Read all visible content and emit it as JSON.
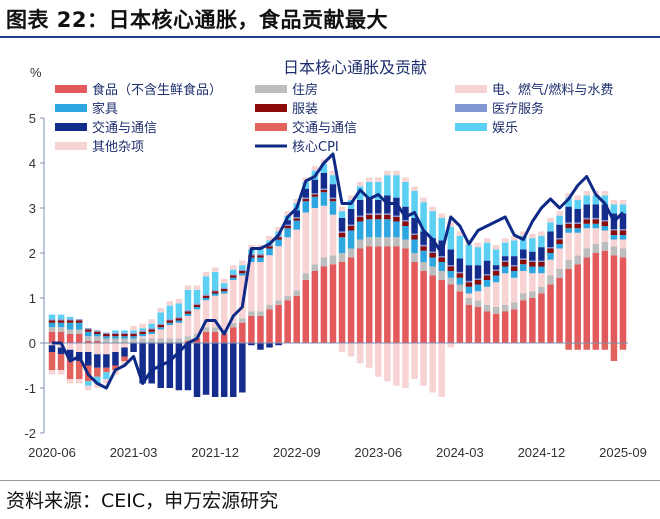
{
  "header": {
    "title": "图表 22：日本核心通胀，食品贡献最大"
  },
  "footer": {
    "source": "资料来源：CEIC，申万宏源研究"
  },
  "chart_data": {
    "type": "bar",
    "stacked": true,
    "title": "日本核心通胀及贡献",
    "ylabel": "%",
    "ylim": [
      -2,
      5
    ],
    "yticks": [
      "5",
      "4",
      "3",
      "2",
      "1",
      "0",
      "-1",
      "-2"
    ],
    "xticks": [
      "2020-06",
      "2021-03",
      "2021-12",
      "2022-09",
      "2023-06",
      "2024-03",
      "2024-12",
      "2025-09"
    ],
    "x_start": "2020-06",
    "x_end": "2025-09",
    "grid": false,
    "legend_position": "top",
    "series": [
      {
        "name": "食品（不含生鲜食品）",
        "color": "#e35a5c",
        "values": [
          0.25,
          0.25,
          0.2,
          0.2,
          0.05,
          0.05,
          0,
          0,
          0,
          0,
          0,
          0,
          0,
          0,
          0,
          0.05,
          0.1,
          0.25,
          0.25,
          0.2,
          0.35,
          0.45,
          0.6,
          0.6,
          0.75,
          0.85,
          0.95,
          1.05,
          1.4,
          1.6,
          1.7,
          1.75,
          1.8,
          1.9,
          2.1,
          2.15,
          2.15,
          2.15,
          2.15,
          2.1,
          1.8,
          1.6,
          1.5,
          1.4,
          1.3,
          1.15,
          0.85,
          0.8,
          0.7,
          0.65,
          0.7,
          0.75,
          0.95,
          1.0,
          1.1,
          1.3,
          1.45,
          1.65,
          1.75,
          1.9,
          2.0,
          2.05,
          1.95,
          1.9
        ]
      },
      {
        "name": "住房",
        "color": "#bdbdbd",
        "values": [
          0.1,
          0.1,
          0.1,
          0.1,
          0.1,
          0.1,
          0.1,
          0.1,
          0.1,
          0.1,
          0.1,
          0.1,
          0.1,
          0.1,
          0.1,
          0.1,
          0.1,
          0.1,
          0.1,
          0.1,
          0.1,
          0.1,
          0.1,
          0.1,
          0.1,
          0.1,
          0.1,
          0.12,
          0.15,
          0.15,
          0.2,
          0.2,
          0.2,
          0.2,
          0.2,
          0.2,
          0.2,
          0.2,
          0.2,
          0.2,
          0.2,
          0.2,
          0.2,
          0.2,
          0.15,
          0.15,
          0.15,
          0.15,
          0.15,
          0.15,
          0.15,
          0.15,
          0.15,
          0.15,
          0.15,
          0.2,
          0.2,
          0.2,
          0.2,
          0.2,
          0.2,
          0.2,
          0.2,
          0.2
        ]
      },
      {
        "name": "电、燃气/燃料与水费",
        "color": "#f8d3d3",
        "values": [
          -0.05,
          -0.1,
          -0.15,
          -0.2,
          -0.2,
          -0.25,
          -0.25,
          -0.2,
          -0.1,
          0,
          0.05,
          0.1,
          0.2,
          0.3,
          0.35,
          0.45,
          0.55,
          0.6,
          0.7,
          0.8,
          0.95,
          0.95,
          1.1,
          1.1,
          1.1,
          1.2,
          1.3,
          1.35,
          1.35,
          1.25,
          1.15,
          0.9,
          -0.2,
          -0.3,
          -0.45,
          -0.55,
          -0.75,
          -0.85,
          -0.95,
          -1.0,
          -0.8,
          -0.95,
          -1.1,
          -1.2,
          -0.1,
          0,
          0.1,
          0.2,
          0.4,
          0.55,
          0.7,
          0.55,
          0.5,
          0.4,
          0.3,
          0.35,
          0.45,
          0.6,
          0.5,
          0.45,
          0.35,
          0.25,
          0.15,
          0.2
        ]
      },
      {
        "name": "家具",
        "color": "#2ea6df",
        "values": [
          0.1,
          0.1,
          0.15,
          0.15,
          0.1,
          0.05,
          0.05,
          0.05,
          0.05,
          0.05,
          0.05,
          0.05,
          0.05,
          0.05,
          0.05,
          0.05,
          0.05,
          0.05,
          0.05,
          0.05,
          0.05,
          0.05,
          0.1,
          0.1,
          0.15,
          0.15,
          0.2,
          0.2,
          0.25,
          0.25,
          0.3,
          0.3,
          0.35,
          0.4,
          0.4,
          0.4,
          0.4,
          0.4,
          0.35,
          0.3,
          0.3,
          0.25,
          0.2,
          0.2,
          0.15,
          0.15,
          0.15,
          0.15,
          0.15,
          0.15,
          0.15,
          0.15,
          0.15,
          0.15,
          0.15,
          0.15,
          0.1,
          0.1,
          0.1,
          0.1,
          0.1,
          0.1,
          0.1,
          0.1
        ]
      },
      {
        "name": "服装",
        "color": "#8c0b0b",
        "values": [
          0.05,
          0.05,
          0.05,
          0.05,
          0.05,
          0.05,
          0.05,
          0.05,
          0.05,
          0.05,
          0.05,
          0.05,
          0.05,
          0.05,
          0.05,
          0.05,
          0.05,
          0.05,
          0.05,
          0.05,
          0.05,
          0.05,
          0.05,
          0.05,
          0.05,
          0.05,
          0.05,
          0.05,
          0.05,
          0.05,
          0.05,
          0.05,
          0.1,
          0.1,
          0.1,
          0.1,
          0.1,
          0.1,
          0.1,
          0.1,
          0.1,
          0.1,
          0.1,
          0.1,
          0.1,
          0.1,
          0.1,
          0.1,
          0.1,
          0.1,
          0.1,
          0.1,
          0.1,
          0.1,
          0.1,
          0.1,
          0.1,
          0.1,
          0.1,
          0.1,
          0.1,
          0.1,
          0.1,
          0.1
        ]
      },
      {
        "name": "医疗服务",
        "color": "#8397d2",
        "values": [
          0.03,
          0.03,
          0.03,
          0.03,
          0.03,
          0.03,
          0.03,
          0.03,
          0.03,
          0.03,
          0.03,
          0.03,
          0.03,
          0.03,
          0.03,
          0.03,
          0.03,
          0.03,
          0.03,
          0.03,
          0.03,
          0.03,
          0.03,
          0.03,
          0.03,
          0.03,
          0.03,
          0.03,
          0.03,
          0.03,
          0.03,
          0.03,
          0.03,
          0.03,
          0.03,
          0.03,
          0.03,
          0.03,
          0.03,
          0.03,
          0.03,
          0.03,
          0.03,
          0.03,
          0.03,
          0.03,
          0.03,
          0.03,
          0.03,
          0.03,
          0.03,
          0.03,
          0.03,
          0.03,
          0.03,
          0.03,
          0.03,
          0.03,
          0.03,
          0.03,
          0.03,
          0.03,
          0.03,
          0.03
        ]
      },
      {
        "name": "交通与通信",
        "color": "#142d8c",
        "values": [
          -0.15,
          -0.15,
          -0.2,
          -0.2,
          -0.3,
          -0.3,
          -0.3,
          -0.3,
          -0.2,
          -0.2,
          -0.9,
          -0.9,
          -1.0,
          -1.0,
          -1.05,
          -1.05,
          -1.2,
          -1.15,
          -1.2,
          -1.2,
          -1.2,
          -1.1,
          -0.05,
          -0.15,
          -0.1,
          -0.05,
          0.1,
          0.15,
          0.2,
          0.3,
          0.35,
          0.3,
          0.3,
          0.35,
          0.35,
          0.35,
          0.3,
          0.4,
          0.4,
          0.3,
          0.35,
          0.3,
          0.3,
          0.35,
          0.35,
          0.3,
          0.35,
          0.3,
          0.3,
          0.1,
          0.1,
          0.2,
          0.2,
          0.2,
          0.3,
          0.35,
          0.3,
          0.35,
          0.3,
          0.3,
          0.3,
          0.35,
          0.35,
          0.35
        ]
      },
      {
        "name": "交通与通信",
        "color": "#e2625c",
        "values": [
          -0.4,
          -0.35,
          -0.45,
          -0.4,
          -0.35,
          -0.2,
          -0.1,
          -0.1,
          -0.1,
          0,
          0,
          0,
          0,
          0,
          0,
          0,
          0,
          0,
          0,
          0,
          0,
          0,
          0,
          0,
          0,
          0,
          0,
          0,
          0,
          0,
          0,
          0,
          0,
          0,
          0,
          0,
          0,
          0,
          0,
          0,
          0,
          0,
          0,
          0,
          0,
          0,
          0,
          0,
          0,
          0,
          0,
          0,
          0,
          0,
          0,
          0,
          0,
          -0.15,
          -0.15,
          -0.15,
          -0.15,
          -0.15,
          -0.4,
          -0.15
        ]
      },
      {
        "name": "娱乐",
        "color": "#5cd0f2",
        "values": [
          0.1,
          0.1,
          0.05,
          0,
          -0.1,
          -0.15,
          -0.15,
          0.05,
          0.05,
          0.05,
          0.05,
          0.1,
          0.25,
          0.3,
          0.3,
          0.45,
          0.3,
          0.4,
          0.4,
          0.1,
          0.1,
          0.1,
          0.1,
          0.1,
          0.1,
          0.1,
          0.1,
          0.15,
          0.15,
          0.2,
          0.2,
          0.2,
          0.15,
          0.2,
          0.3,
          0.35,
          0.4,
          0.45,
          0.5,
          0.55,
          0.6,
          0.65,
          0.6,
          0.5,
          0.5,
          0.5,
          0.45,
          0.4,
          0.4,
          0.35,
          0.3,
          0.35,
          0.3,
          0.3,
          0.25,
          0.2,
          0.2,
          0.2,
          0.2,
          0.2,
          0.2,
          0.2,
          0.2,
          0.2
        ]
      },
      {
        "name": "其他杂项",
        "color": "#f6d4d4",
        "values": [
          -0.1,
          -0.1,
          -0.1,
          -0.1,
          -0.1,
          -0.1,
          -0.1,
          -0.1,
          -0.1,
          0.1,
          0.1,
          0.1,
          0.1,
          0.1,
          0.1,
          0.1,
          0.1,
          0.1,
          0.1,
          0.1,
          0.1,
          0.1,
          0.1,
          0.1,
          0.1,
          0.1,
          0.1,
          0.1,
          0.1,
          0.1,
          0.1,
          0.1,
          0.1,
          0.1,
          0.1,
          0.1,
          0.1,
          0.1,
          0.1,
          0.1,
          0.1,
          0.1,
          0.1,
          0.1,
          0.1,
          0.1,
          0.1,
          0.1,
          0.1,
          0.1,
          0.1,
          0.1,
          0.1,
          0.1,
          0.1,
          0.1,
          0.1,
          0.1,
          0.1,
          0.1,
          0.1,
          0.1,
          0.1,
          0.1
        ]
      }
    ],
    "line": {
      "name": "核心CPI",
      "color": "#0f2a86",
      "values": [
        0,
        0,
        -0.4,
        -0.3,
        -0.7,
        -0.9,
        -1.0,
        -0.6,
        -0.5,
        -0.3,
        -0.9,
        -0.6,
        -0.5,
        -0.4,
        -0.2,
        0.0,
        0.1,
        0.5,
        0.5,
        0.2,
        0.6,
        0.8,
        2.1,
        2.1,
        2.2,
        2.4,
        2.8,
        3.0,
        3.6,
        3.7,
        4.0,
        4.2,
        3.1,
        3.1,
        3.4,
        3.2,
        3.3,
        3.1,
        3.1,
        2.8,
        2.9,
        2.5,
        2.3,
        2.0,
        2.8,
        2.6,
        2.2,
        2.5,
        2.6,
        2.7,
        2.8,
        2.4,
        2.3,
        2.7,
        3.0,
        3.2,
        3.0,
        3.2,
        3.5,
        3.7,
        3.3,
        3.1,
        2.7,
        2.9
      ]
    }
  }
}
